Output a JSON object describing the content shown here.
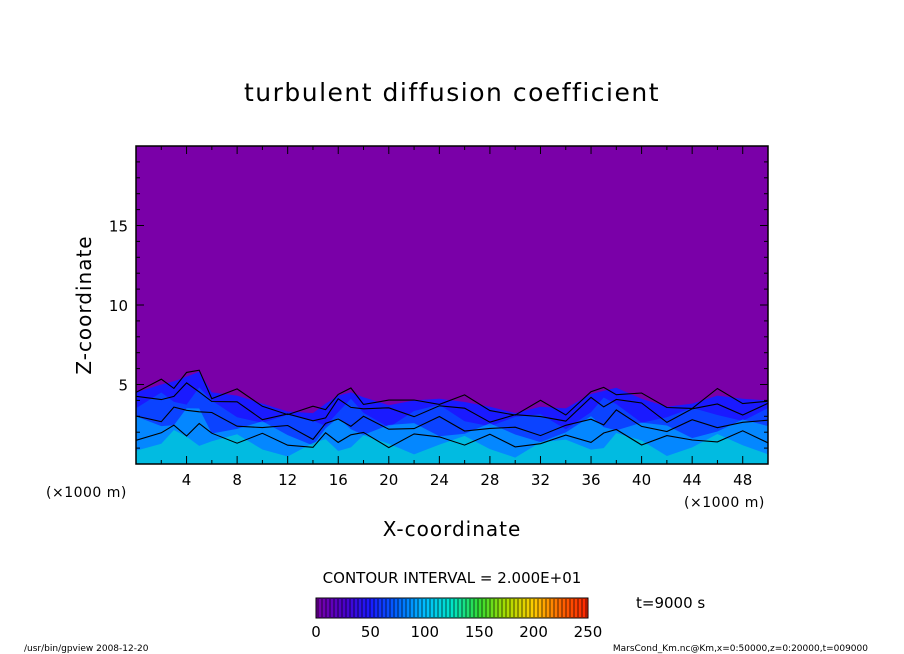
{
  "chart_data": {
    "type": "heatmap",
    "title": "turbulent diffusion coefficient",
    "xlabel": "X-coordinate",
    "ylabel": "Z-coordinate",
    "x_unit": "(×1000 m)",
    "y_unit": "(×1000 m)",
    "xlim": [
      0,
      50
    ],
    "ylim": [
      0,
      20
    ],
    "x_ticks": [
      4,
      8,
      12,
      16,
      20,
      24,
      28,
      32,
      36,
      40,
      44,
      48
    ],
    "y_ticks": [
      5,
      10,
      15
    ],
    "contour_interval_text": "CONTOUR INTERVAL = 2.000E+01",
    "time_text": "t=9000 s",
    "colorbar": {
      "min": 0,
      "max": 250,
      "ticks": [
        0,
        50,
        100,
        150,
        200,
        250
      ],
      "colors": [
        "#7a00a8",
        "#4d00c8",
        "#1a1aff",
        "#0066ff",
        "#00bfff",
        "#00e5c8",
        "#33dd33",
        "#aadd00",
        "#ffcc00",
        "#ff6600",
        "#ff2200"
      ]
    },
    "background_value": 0,
    "turbulent_layer_top_km": [
      [
        0,
        4.5
      ],
      [
        2,
        5.0
      ],
      [
        3,
        5.2
      ],
      [
        4,
        5.5
      ],
      [
        5,
        5.8
      ],
      [
        6,
        4.5
      ],
      [
        8,
        4.3
      ],
      [
        10,
        3.8
      ],
      [
        12,
        3.3
      ],
      [
        14,
        3.2
      ],
      [
        15,
        3.8
      ],
      [
        16,
        4.3
      ],
      [
        17,
        4.5
      ],
      [
        18,
        4.2
      ],
      [
        20,
        3.7
      ],
      [
        22,
        4.0
      ],
      [
        24,
        4.1
      ],
      [
        26,
        3.9
      ],
      [
        28,
        3.6
      ],
      [
        30,
        3.2
      ],
      [
        32,
        3.6
      ],
      [
        34,
        3.5
      ],
      [
        36,
        4.4
      ],
      [
        37,
        4.6
      ],
      [
        38,
        4.8
      ],
      [
        40,
        4.1
      ],
      [
        42,
        3.6
      ],
      [
        44,
        3.8
      ],
      [
        46,
        4.3
      ],
      [
        48,
        4.1
      ],
      [
        50,
        4.0
      ]
    ]
  },
  "footer": {
    "left": "/usr/bin/gpview   2008-12-20",
    "right": "MarsCond_Km.nc@Km,x=0:50000,z=0:20000,t=009000"
  }
}
